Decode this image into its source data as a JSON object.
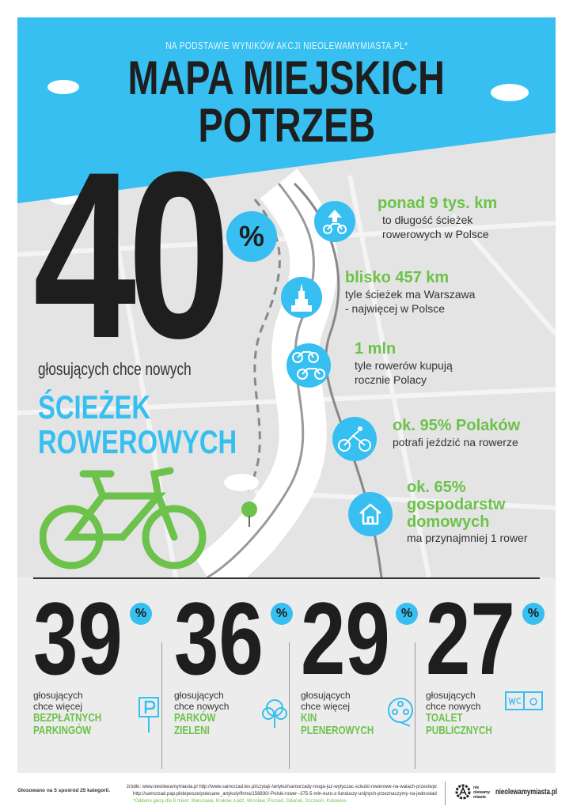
{
  "header": {
    "subtitle": "NA PODSTAWIE WYNIKÓW AKCJI NIEOLEWAMYMIASTA.PL*",
    "title_line1": "MAPA MIEJSKICH",
    "title_line2": "POTRZEB"
  },
  "main_stat": {
    "value": "40",
    "percent": "%",
    "text": "głosujących chce nowych",
    "category_line1": "ŚCIEŻEK",
    "category_line2": "ROWEROWYCH"
  },
  "facts": [
    {
      "icon": "bike-arrow-icon",
      "headline": "ponad 9 tys. km",
      "text": [
        "to długość ścieżek",
        "rowerowych w Polsce"
      ]
    },
    {
      "icon": "palace-icon",
      "headline": "blisko 457 km",
      "text": [
        "tyle ścieżek ma Warszawa",
        "- najwięcej w Polsce"
      ]
    },
    {
      "icon": "bikes-icon",
      "headline": "1 mln",
      "text": [
        "tyle rowerów kupują",
        "rocznie Polacy"
      ]
    },
    {
      "icon": "cyclist-icon",
      "headline": "ok. 95% Polaków",
      "text": [
        "potrafi jeździć na rowerze"
      ]
    },
    {
      "icon": "house-icon",
      "headline": "ok. 65% gospodarstw domowych",
      "headline_lines": [
        "ok. 65%",
        "gospodarstw",
        "domowych"
      ],
      "text": [
        "ma przynajmniej 1 rower"
      ]
    }
  ],
  "stats": [
    {
      "value": "39",
      "percent": "%",
      "line1": "głosujących",
      "line2": "chce więcej",
      "label1": "BEZPŁATNYCH",
      "label2": "PARKINGÓW",
      "icon": "parking-icon"
    },
    {
      "value": "36",
      "percent": "%",
      "line1": "głosujących",
      "line2": "chce nowych",
      "label1": "PARKÓW",
      "label2": "ZIELENI",
      "icon": "tree-icon"
    },
    {
      "value": "29",
      "percent": "%",
      "line1": "głosujących",
      "line2": "chce więcej",
      "label1": "KIN",
      "label2": "PLENEROWYCH",
      "icon": "film-reel-icon"
    },
    {
      "value": "27",
      "percent": "%",
      "line1": "głosujących",
      "line2": "chce nowych",
      "label1": "TOALET",
      "label2": "PUBLICZNYCH",
      "icon": "toilet-icon"
    }
  ],
  "footer": {
    "note": "Głosowano na 5 spośród 25 kategorii.",
    "source1": "źródło: www.nieolewamymiasta.pl http://www.samorzad.lex.pl/czytaj/-/artykul/samorzady-moga-juz-wytyczac-sciezki-rowerowe-na-walach-przeciwpowodziowych",
    "source2": "http://samorzad.pap.pl/depesze/polecane_artykuly/firma/156830/-Polski-rower--375-5-mln-euro-z-funduszy-unijnych-przeznaczymy-na-jednoslady",
    "asterisk": "*Oddano głosy dla 8 miast: Warszawa, Kraków, Łódź, Wrocław, Poznań, Gdańsk, Szczecin, Katowice.",
    "logo_text": "nie olewamy miasta",
    "site": "nieolewamymiasta.pl"
  },
  "colors": {
    "blue": "#36bff0",
    "green": "#6cc24a",
    "dark": "#1e1e1e",
    "map": "#e4e4e4"
  }
}
